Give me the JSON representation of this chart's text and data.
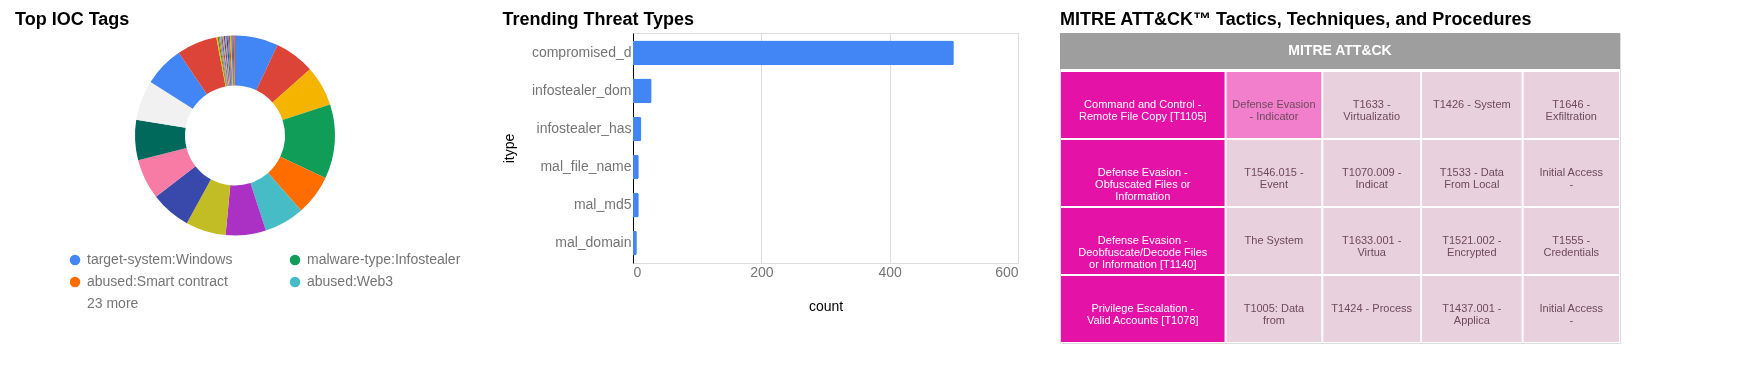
{
  "chart_data": [
    {
      "type": "donut",
      "title": "Top IOC Tags",
      "categories": [
        "target-system:Windows",
        null,
        null,
        "malware-type:Infostealer",
        "abused:Smart contract",
        "abused:Web3",
        null,
        null,
        null,
        null,
        null,
        null,
        null,
        null,
        null,
        null,
        null,
        null,
        null,
        null,
        null,
        null,
        null,
        null,
        null,
        null,
        null,
        null,
        null
      ],
      "values": [
        7,
        6.5,
        6.5,
        12,
        6.5,
        6.5,
        6.5,
        6.5,
        6.5,
        6.5,
        6.5,
        6.5,
        6.5,
        6.5,
        0.2,
        0.2,
        0.2,
        0.2,
        0.2,
        0.2,
        0.2,
        0.2,
        0.2,
        0.2,
        0.2,
        0.2,
        0.2,
        0.2,
        0.2
      ],
      "colors": [
        "#4285f4",
        "#db4437",
        "#f4b400",
        "#0f9d58",
        "#ff6d00",
        "#46bdc6",
        "#ab30c4",
        "#c2bc25",
        "#3949ab",
        "#f77ba5",
        "#00695c",
        "#f1f1f1",
        "#4285f4",
        "#db4437",
        "#f4b400",
        "#0f9d58",
        "#ff6d00",
        "#46bdc6",
        "#ab30c4",
        "#c2bc25",
        "#3949ab",
        "#f77ba5",
        "#00695c",
        "#4285f4",
        "#db4437",
        "#f4b400",
        "#0f9d58",
        "#ab30c4",
        "#ff6d00"
      ],
      "legend": "bottom",
      "annotations": [
        "23 more"
      ]
    },
    {
      "type": "bar",
      "title": "Trending Threat Types",
      "orientation": "horizontal",
      "categories": [
        "compromised_d",
        "infostealer_dom",
        "infostealer_has",
        "mal_file_name",
        "mal_md5",
        "mal_domain"
      ],
      "values": [
        500,
        29,
        13,
        9,
        9,
        6
      ],
      "color": "#4285f4",
      "xlim": [
        0,
        600
      ],
      "xticks": [
        0,
        200,
        400,
        600
      ],
      "xlabel": "count",
      "ylabel": "itype",
      "grid": "x"
    },
    {
      "type": "other",
      "title": "MITRE ATT&CK™ Tactics, Techniques, and Procedures",
      "annotations": [
        "MITRE ATT&CK"
      ],
      "categories": [
        "Command and Control - Remote File Copy [T1105]",
        "Defense Evasion - Obfuscated Files or Information",
        "Defense Evasion - Deobfuscate/Decode Files or Information [T1140]",
        "Privilege Escalation - Valid Accounts [T1078]",
        "Defense Evasion - Indicator",
        "T1546.015 - Event",
        "The System",
        "T1005: Data from",
        "T1633 - Virtualizatio",
        "T1070.009 - Indicat",
        "T1633.001 - Virtua",
        "T1424 - Process",
        "T1426 - System",
        "T1533 - Data From Local",
        "T1521.002 - Encrypted",
        "T1437.001 - Applica",
        "T1646 - Exfiltration",
        "Initial Access -",
        "T1555 - Credentials",
        "Initial Access -"
      ],
      "colors": [
        "#e512a8",
        "#e512a8",
        "#e512a8",
        "#e512a8",
        "#f17fcc",
        "#e8d0dc",
        "#e8d0dc",
        "#e8d0dc",
        "#e8d0dc",
        "#e8d0dc",
        "#e8d0dc",
        "#e8d0dc",
        "#e8d0dc",
        "#e8d0dc",
        "#e8d0dc",
        "#e8d0dc",
        "#e8d0dc",
        "#e8d0dc",
        "#e8d0dc",
        "#e8d0dc"
      ]
    }
  ]
}
